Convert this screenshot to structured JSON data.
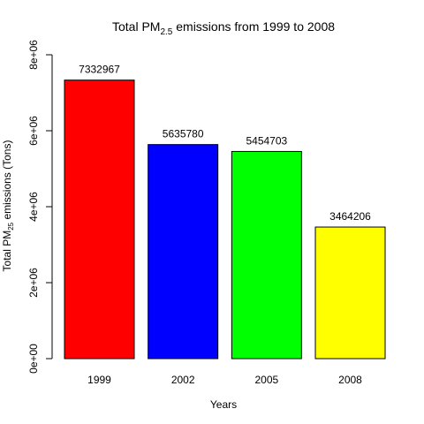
{
  "chart_data": {
    "type": "bar",
    "title": {
      "prefix": "Total PM",
      "subscript": "2.5",
      "suffix": " emissions from 1999 to 2008"
    },
    "xlabel": "Years",
    "ylabel": {
      "prefix": "Total PM",
      "subscript": "25",
      "suffix": " emissions (Tons)"
    },
    "categories": [
      "1999",
      "2002",
      "2005",
      "2008"
    ],
    "values": [
      7332967,
      5635780,
      5454703,
      3464206
    ],
    "data_labels": [
      "7332967",
      "5635780",
      "5454703",
      "3464206"
    ],
    "colors": [
      "#ff0000",
      "#0000ff",
      "#00ff00",
      "#ffff00"
    ],
    "ylim": [
      0,
      8000000
    ],
    "y_ticks": [
      0,
      2000000,
      4000000,
      6000000,
      8000000
    ],
    "y_tick_labels": [
      "0e+00",
      "2e+06",
      "4e+06",
      "6e+06",
      "8e+06"
    ],
    "grid": false,
    "legend": "none"
  }
}
